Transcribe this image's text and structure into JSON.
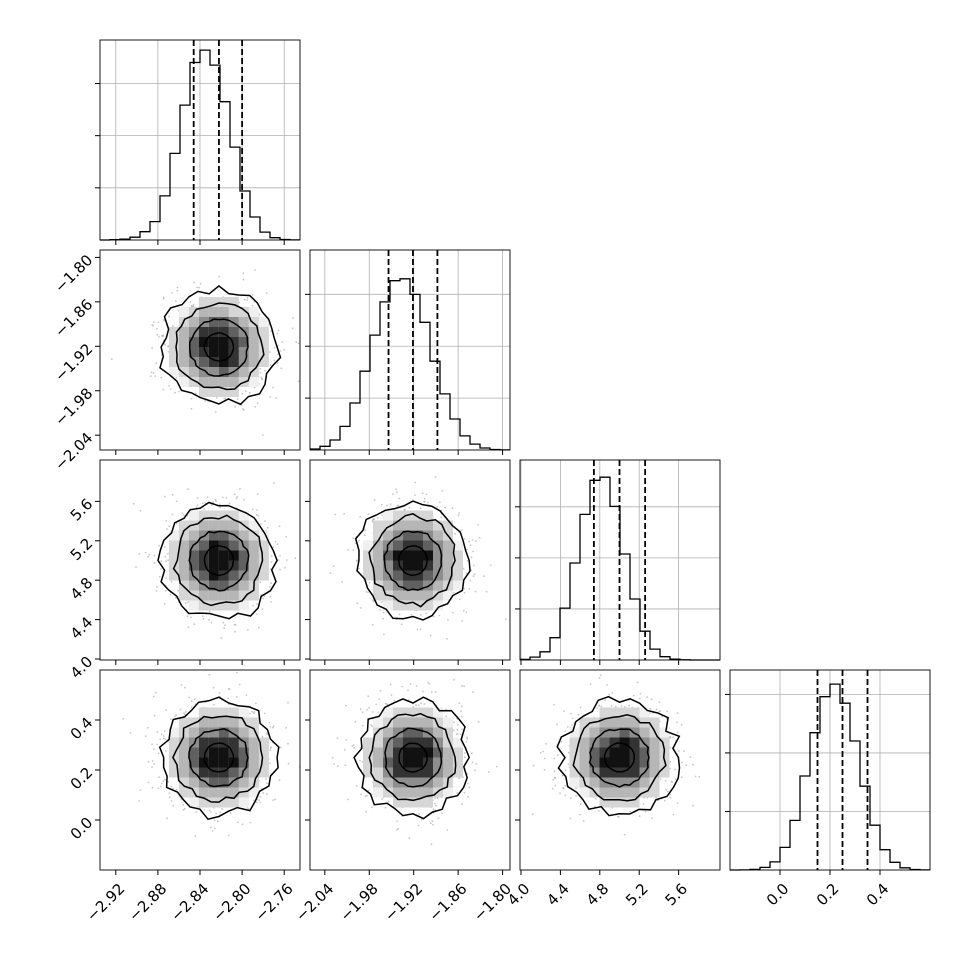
{
  "chart_data": {
    "type": "corner",
    "title": "",
    "grid": true,
    "colors": {
      "line": "#000000",
      "grid": "#b0b0b0",
      "axes": "#000000",
      "points": "#999999",
      "density": "#000000"
    },
    "parameters": [
      {
        "index": 0,
        "range": [
          -2.935,
          -2.745
        ],
        "ticks": [
          -2.92,
          -2.88,
          -2.84,
          -2.8,
          -2.76
        ],
        "tick_labels": [
          "−2.92",
          "−2.88",
          "−2.84",
          "−2.80",
          "−2.76"
        ],
        "quantiles": [
          -2.846,
          -2.822,
          -2.8
        ],
        "mean": -2.822,
        "std": 0.024
      },
      {
        "index": 1,
        "range": [
          -2.06,
          -1.79
        ],
        "ticks": [
          -2.04,
          -1.98,
          -1.92,
          -1.86,
          -1.8
        ],
        "tick_labels": [
          "−2.04",
          "−1.98",
          "−1.92",
          "−1.86",
          "−1.80"
        ],
        "quantiles": [
          -1.954,
          -1.921,
          -1.888
        ],
        "mean": -1.921,
        "std": 0.033
      },
      {
        "index": 2,
        "range": [
          3.99,
          6.02
        ],
        "ticks": [
          4.0,
          4.4,
          4.8,
          5.2,
          5.6
        ],
        "tick_labels": [
          "4.0",
          "4.4",
          "4.8",
          "5.2",
          "5.6"
        ],
        "quantiles": [
          4.74,
          5.0,
          5.26
        ],
        "mean": 5.0,
        "std": 0.26
      },
      {
        "index": 3,
        "range": [
          -0.2,
          0.6
        ],
        "ticks": [
          0.0,
          0.2,
          0.4
        ],
        "tick_labels": [
          "0.0",
          "0.2",
          "0.4"
        ],
        "quantiles": [
          0.15,
          0.25,
          0.35
        ],
        "mean": 0.25,
        "std": 0.1
      }
    ],
    "histograms": [
      {
        "param": 0,
        "bin_edges": [
          -2.935,
          -2.9255,
          -2.916,
          -2.9065,
          -2.897,
          -2.8875,
          -2.878,
          -2.8685,
          -2.859,
          -2.8495,
          -2.84,
          -2.8305,
          -2.821,
          -2.8115,
          -2.802,
          -2.7925,
          -2.783,
          -2.7735,
          -2.764,
          -2.7545,
          -2.745
        ],
        "counts": [
          0,
          4,
          9,
          27,
          80,
          176,
          423,
          830,
          1293,
          1701,
          1820,
          1676,
          1325,
          890,
          470,
          220,
          76,
          22,
          5,
          1
        ],
        "peak": 1840
      },
      {
        "param": 1,
        "bin_edges": [
          -2.06,
          -2.0465,
          -2.033,
          -2.0195,
          -2.006,
          -1.9925,
          -1.979,
          -1.9655,
          -1.952,
          -1.9385,
          -1.925,
          -1.9115,
          -1.898,
          -1.8845,
          -1.871,
          -1.8575,
          -1.844,
          -1.8305,
          -1.817,
          -1.8035,
          -1.79
        ],
        "counts": [
          10,
          36,
          96,
          227,
          453,
          759,
          1107,
          1427,
          1631,
          1650,
          1499,
          1230,
          856,
          541,
          299,
          136,
          57,
          19,
          5,
          1
        ],
        "peak": 1850
      },
      {
        "param": 2,
        "bin_edges": [
          3.99,
          4.0915,
          4.193,
          4.2945,
          4.396,
          4.4975,
          4.599,
          4.7005,
          4.802,
          4.9035,
          5.005,
          5.1065,
          5.208,
          5.3095,
          5.411,
          5.5125,
          5.614,
          5.7155,
          5.817,
          5.9185,
          6.02
        ],
        "counts": [
          6,
          28,
          80,
          218,
          508,
          950,
          1426,
          1760,
          1790,
          1504,
          1038,
          597,
          282,
          107,
          32,
          8,
          2,
          0,
          0,
          0
        ],
        "peak": 1880
      },
      {
        "param": 3,
        "bin_edges": [
          -0.2,
          -0.16,
          -0.12,
          -0.08,
          -0.04,
          0.0,
          0.04,
          0.08,
          0.12,
          0.16,
          0.2,
          0.24,
          0.28,
          0.32,
          0.36,
          0.4,
          0.44,
          0.48,
          0.52,
          0.56,
          0.6
        ],
        "counts": [
          0,
          1,
          5,
          22,
          69,
          193,
          424,
          803,
          1173,
          1480,
          1588,
          1425,
          1102,
          716,
          383,
          173,
          66,
          19,
          4,
          1
        ],
        "peak": 1640
      }
    ],
    "pairs": [
      {
        "x_param": 0,
        "y_param": 1,
        "row": 1,
        "col": 0
      },
      {
        "x_param": 0,
        "y_param": 2,
        "row": 2,
        "col": 0
      },
      {
        "x_param": 1,
        "y_param": 2,
        "row": 2,
        "col": 1
      },
      {
        "x_param": 0,
        "y_param": 3,
        "row": 3,
        "col": 0
      },
      {
        "x_param": 1,
        "y_param": 3,
        "row": 3,
        "col": 1
      },
      {
        "x_param": 2,
        "y_param": 3,
        "row": 3,
        "col": 2
      }
    ],
    "contour_levels_sigma": [
      0.5,
      1.0,
      1.5,
      2.0
    ],
    "scatter_samples_per_panel": 900
  }
}
